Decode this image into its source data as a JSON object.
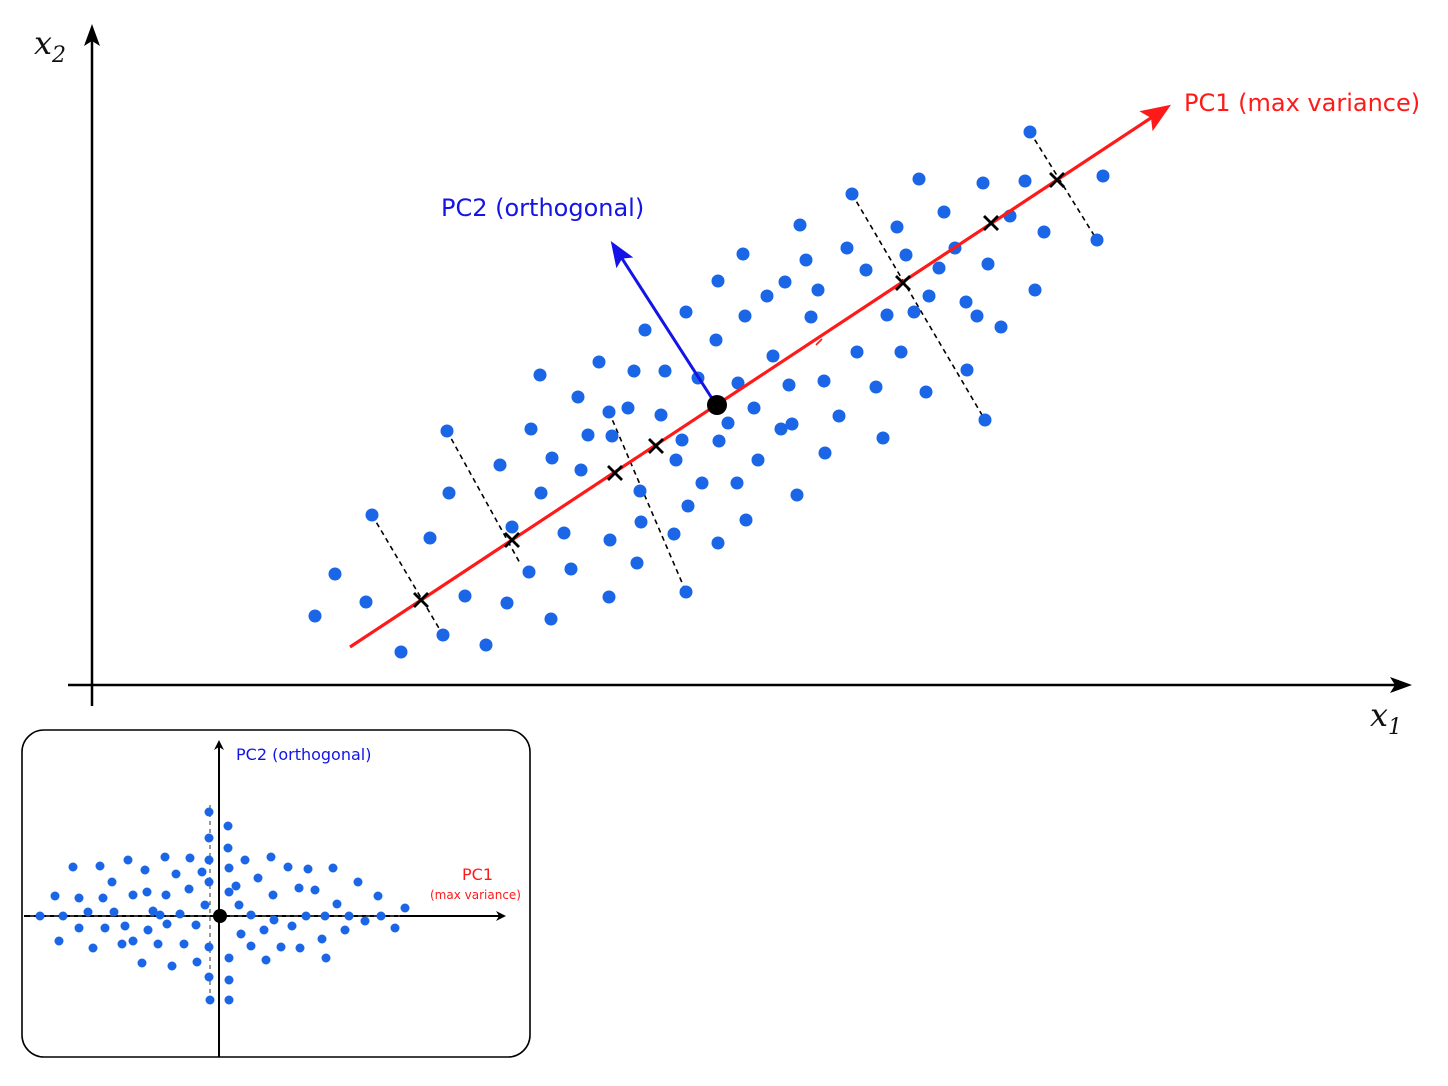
{
  "axes": {
    "x_label": "x",
    "x_subscript": "1",
    "y_label": "x",
    "y_subscript": "2"
  },
  "pc1": {
    "label": "PC1 (max variance)",
    "color": "#ff1a1a"
  },
  "pc2": {
    "label": "PC2 (orthogonal)",
    "color": "#1414e6"
  },
  "point_color": "#1a66e6",
  "mean_color": "#000000",
  "inset": {
    "pc2_label": "PC2 (orthogonal)",
    "pc1_label": "PC1",
    "pc1_sub": "(max variance)"
  }
}
